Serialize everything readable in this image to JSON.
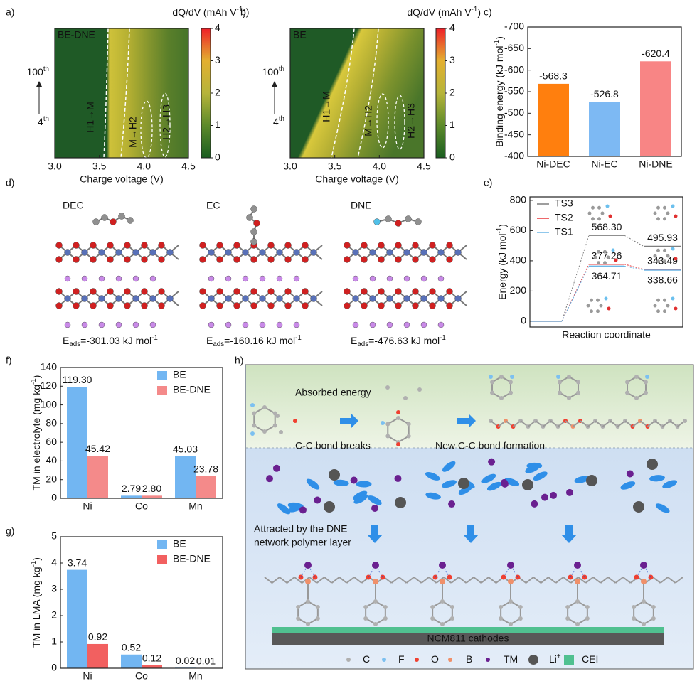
{
  "panel_labels": [
    "a)",
    "b)",
    "c)",
    "d)",
    "e)",
    "f)",
    "g)",
    "h)"
  ],
  "chart_data": [
    {
      "type": "heatmap",
      "title": "BE-DNE",
      "xlabel": "Charge voltage (V)",
      "xlim": [
        3.0,
        4.5
      ],
      "xticks": [
        {
          "value": 3,
          "label": "3.0"
        },
        3.5,
        {
          "value": 4,
          "label": "4.0"
        },
        4.5
      ],
      "ylabels": [
        [
          {
            "text": "100"
          },
          {
            "text": "th",
            "shift": "sup"
          }
        ],
        [
          {
            "text": "4"
          },
          {
            "text": "th",
            "shift": "sup"
          }
        ]
      ],
      "colorbar": {
        "label": [
          {
            "text": "dQ/dV (mAh V"
          },
          {
            "text": "-1",
            "shift": "sup"
          },
          {
            "text": ")"
          }
        ],
        "lim": [
          0,
          4
        ],
        "ticks": [
          0,
          1,
          2,
          3,
          4
        ]
      },
      "annotations": [
        "H1→M",
        "M→H2",
        "H2→H3"
      ]
    },
    {
      "type": "heatmap",
      "title": "BE",
      "xlabel": "Charge voltage (V)",
      "xlim": [
        3.0,
        4.5
      ],
      "xticks": [
        {
          "value": 3,
          "label": "3.0"
        },
        3.5,
        {
          "value": 4,
          "label": "4.0"
        },
        4.5
      ],
      "ylabels": [
        [
          {
            "text": "100"
          },
          {
            "text": "th",
            "shift": "sup"
          }
        ],
        [
          {
            "text": "4"
          },
          {
            "text": "th",
            "shift": "sup"
          }
        ]
      ],
      "colorbar": {
        "label": [
          {
            "text": "dQ/dV (mAh V"
          },
          {
            "text": "-1",
            "shift": "sup"
          },
          {
            "text": ")"
          }
        ],
        "lim": [
          0,
          4
        ],
        "ticks": [
          0,
          1,
          2,
          3,
          4
        ]
      },
      "annotations": [
        "H1→M",
        "M→H2",
        "H2→H3"
      ]
    },
    {
      "type": "bar",
      "ylabel": [
        {
          "text": "Binding energy (kJ mol"
        },
        {
          "text": "-1",
          "shift": "sup"
        },
        {
          "text": ")"
        }
      ],
      "categories": [
        "Ni-DEC",
        "Ni-EC",
        "Ni-DNE"
      ],
      "values": [
        -568.3,
        -526.8,
        -620.4
      ],
      "colors": [
        "#ff7f0e",
        "#7db9f3",
        "#f88585"
      ],
      "ylim": [
        -400,
        -700
      ],
      "yticks": [
        -400,
        -450,
        -500,
        -550,
        -600,
        -650,
        -700
      ]
    },
    {
      "type": "energy",
      "xlabel": "Reaction coordinate",
      "ylabel": [
        {
          "text": "Energy (kJ mol"
        },
        {
          "text": "-1",
          "shift": "sup"
        },
        {
          "text": ")"
        }
      ],
      "ylim": [
        -38,
        823
      ],
      "yticks": [
        0,
        200,
        400,
        600,
        800
      ],
      "initial": 0,
      "series": [
        {
          "name": "TS3",
          "color": "#7f7f7f",
          "values": [
            568.3,
            495.93
          ],
          "value_labels": [
            "568.30",
            "495.93"
          ]
        },
        {
          "name": "TS2",
          "color": "#e8373a",
          "values": [
            377.26,
            343.49
          ],
          "value_labels": [
            "377.26",
            "343.49"
          ]
        },
        {
          "name": "TS1",
          "color": "#6cb6e6",
          "values": [
            364.71,
            338.66
          ],
          "value_labels": [
            "364.71",
            "338.66"
          ]
        }
      ]
    },
    {
      "type": "grouped_bar",
      "ylabel": [
        {
          "text": "TM in electrolyte (mg kg"
        },
        {
          "text": "-1",
          "shift": "sup"
        },
        {
          "text": ")"
        }
      ],
      "categories": [
        "Ni",
        "Co",
        "Mn"
      ],
      "ylim": [
        0,
        140
      ],
      "yticks": [
        0,
        20,
        40,
        60,
        80,
        100,
        120,
        140
      ],
      "series": [
        {
          "name": "BE",
          "color": "#72b6f2",
          "values": [
            119.3,
            2.79,
            45.03
          ],
          "value_labels": [
            "119.30",
            "2.79",
            "45.03"
          ]
        },
        {
          "name": "BE-DNE",
          "color": "#f48a8a",
          "values": [
            45.42,
            2.8,
            23.78
          ],
          "value_labels": [
            "45.42",
            "2.80",
            "23.78"
          ]
        }
      ]
    },
    {
      "type": "grouped_bar",
      "ylabel": [
        {
          "text": "TM in LMA (mg kg"
        },
        {
          "text": "-1",
          "shift": "sup"
        },
        {
          "text": ")"
        }
      ],
      "categories": [
        "Ni",
        "Co",
        "Mn"
      ],
      "ylim": [
        0,
        5
      ],
      "yticks": [
        0,
        1,
        2,
        3,
        4,
        5
      ],
      "series": [
        {
          "name": "BE",
          "color": "#72b6f2",
          "values": [
            3.74,
            0.52,
            0.02
          ]
        },
        {
          "name": "BE-DNE",
          "color": "#f26060",
          "values": [
            0.92,
            0.12,
            0.01
          ]
        }
      ]
    }
  ],
  "structures": [
    {
      "name": "DEC",
      "energy": [
        {
          "text": "E"
        },
        {
          "text": "ads",
          "shift": "sub"
        },
        {
          "text": "=-301.03 kJ mol"
        },
        {
          "text": "-1",
          "shift": "sup"
        }
      ]
    },
    {
      "name": "EC",
      "energy": [
        {
          "text": "E"
        },
        {
          "text": "ads",
          "shift": "sub"
        },
        {
          "text": "=-160.16 kJ mol"
        },
        {
          "text": "-1",
          "shift": "sup"
        }
      ]
    },
    {
      "name": "DNE",
      "energy": [
        {
          "text": "E"
        },
        {
          "text": "ads",
          "shift": "sub"
        },
        {
          "text": "=-476.63 kJ mol"
        },
        {
          "text": "-1",
          "shift": "sup"
        }
      ]
    }
  ],
  "schematic": {
    "steps": [
      "Absorbed energy",
      "C-C bond breaks",
      "New C-C bond formation"
    ],
    "attracted": [
      "Attracted by the DNE",
      "network polymer layer"
    ],
    "cathode": "NCM811 cathodes",
    "legend": [
      {
        "name": [
          {
            "text": "C"
          }
        ],
        "color": "#b0b0b0",
        "shape": "dot"
      },
      {
        "name": [
          {
            "text": "F"
          }
        ],
        "color": "#7cc0f0",
        "shape": "dot"
      },
      {
        "name": [
          {
            "text": "O"
          }
        ],
        "color": "#f04030",
        "shape": "dot"
      },
      {
        "name": [
          {
            "text": "B"
          }
        ],
        "color": "#f0906a",
        "shape": "dot"
      },
      {
        "name": [
          {
            "text": "TM"
          }
        ],
        "color": "#6a2090",
        "shape": "dot"
      },
      {
        "name": [
          {
            "text": "Li"
          },
          {
            "text": "+",
            "shift": "sup"
          }
        ],
        "color": "#555555",
        "shape": "big-dot"
      },
      {
        "name": [
          {
            "text": "CEI"
          }
        ],
        "color": "#50c090",
        "shape": "square"
      }
    ]
  }
}
